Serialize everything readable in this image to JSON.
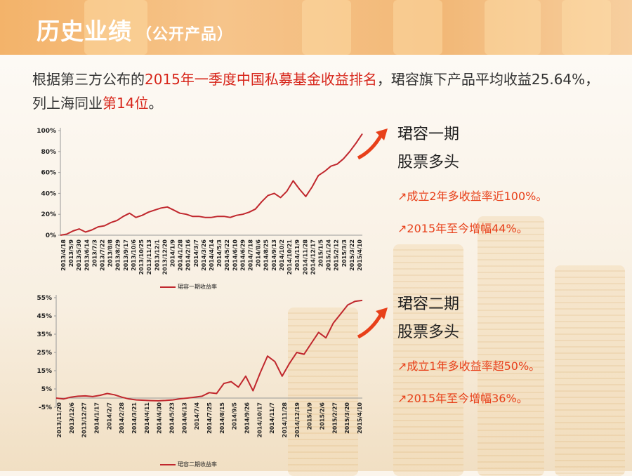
{
  "header": {
    "title": "历史业绩",
    "subtitle": "（公开产品）"
  },
  "intro": {
    "p1": "根据第三方公布的",
    "p2": "2015年一季度中国私募基金收益排名",
    "p3": "，珺容旗下产品平均收益25.64%，列上海同业",
    "p4": "第14位",
    "p5": "。"
  },
  "colors": {
    "line": "#c0272d",
    "accent_red": "#d7261b",
    "arrow": "#e8401a",
    "banner": "#f3b36a"
  },
  "funds": [
    {
      "name": "珺容一期",
      "strategy": "股票多头",
      "point1": "成立2年多收益率近100%。",
      "point2": "2015年至今增幅44%。",
      "arrow_icon": "arrow-up-right"
    },
    {
      "name": "珺容二期",
      "strategy": "股票多头",
      "point1": "成立1年多收益率超50%。",
      "point2": "2015年至今增幅36%。",
      "arrow_icon": "arrow-up-right"
    }
  ],
  "chart_data": [
    {
      "type": "line",
      "legend": "珺容一期收益率",
      "legend_position": "bottom",
      "grid": false,
      "ylim": [
        0,
        100
      ],
      "yticks": [
        "0%",
        "20%",
        "40%",
        "60%",
        "80%",
        "100%"
      ],
      "xticks": [
        "2013/4/18",
        "2013/5/9",
        "2013/5/30",
        "2013/6/14",
        "2013/7/3",
        "2013/7/22",
        "2013/8/8",
        "2013/8/29",
        "2013/9/17",
        "2013/10/6",
        "2013/10/25",
        "2013/11/13",
        "2013/12/1",
        "2013/12/20",
        "2014/1/9",
        "2014/1/28",
        "2014/2/16",
        "2014/3/7",
        "2014/3/26",
        "2014/4/14",
        "2014/5/3",
        "2014/5/22",
        "2014/6/10",
        "2014/6/29",
        "2014/7/18",
        "2014/8/6",
        "2014/8/25",
        "2014/9/13",
        "2014/10/2",
        "2014/10/21",
        "2014/11/9",
        "2014/11/28",
        "2014/12/17",
        "2015/1/5",
        "2015/1/24",
        "2015/2/12",
        "2015/3/3",
        "2015/3/22",
        "2015/4/10"
      ],
      "series": [
        {
          "name": "珺容一期收益率",
          "values": [
            0,
            1,
            4,
            6,
            3,
            5,
            8,
            9,
            12,
            14,
            18,
            21,
            17,
            19,
            22,
            24,
            26,
            27,
            24,
            21,
            20,
            18,
            18,
            17,
            17,
            18,
            18,
            17,
            19,
            20,
            22,
            25,
            32,
            38,
            40,
            36,
            42,
            52,
            44,
            37,
            46,
            57,
            61,
            66,
            68,
            73,
            80,
            88,
            97
          ]
        }
      ]
    },
    {
      "type": "line",
      "legend": "珺容二期收益率",
      "legend_position": "bottom",
      "grid": false,
      "ylim": [
        -5,
        55
      ],
      "yticks": [
        "-5%",
        "5%",
        "15%",
        "25%",
        "35%",
        "45%",
        "55%"
      ],
      "xticks": [
        "2013/11/20",
        "2013/12/6",
        "2013/12/27",
        "2014/1/17",
        "2014/2/7",
        "2014/2/28",
        "2014/3/21",
        "2014/4/11",
        "2014/4/30",
        "2014/5/23",
        "2014/6/13",
        "2014/7/4",
        "2014/7/25",
        "2014/8/15",
        "2014/9/5",
        "2014/9/26",
        "2014/10/17",
        "2014/11/7",
        "2014/11/28",
        "2014/12/19",
        "2015/1/9",
        "2015/2/6",
        "2015/2/27",
        "2015/3/20",
        "2015/4/10"
      ],
      "series": [
        {
          "name": "珺容二期收益率",
          "values": [
            0,
            -0.5,
            0.5,
            1,
            1.2,
            0.8,
            1.5,
            2.5,
            1.8,
            0.5,
            -0.5,
            -1,
            -1.2,
            -1.4,
            -1.5,
            -1.3,
            -1,
            -0.4,
            0,
            0.5,
            1,
            3,
            2.5,
            8,
            9,
            6,
            12,
            4,
            14,
            23,
            20,
            12,
            19,
            25,
            24,
            30,
            36,
            33,
            41,
            46,
            51,
            53,
            53.5
          ]
        }
      ]
    }
  ]
}
